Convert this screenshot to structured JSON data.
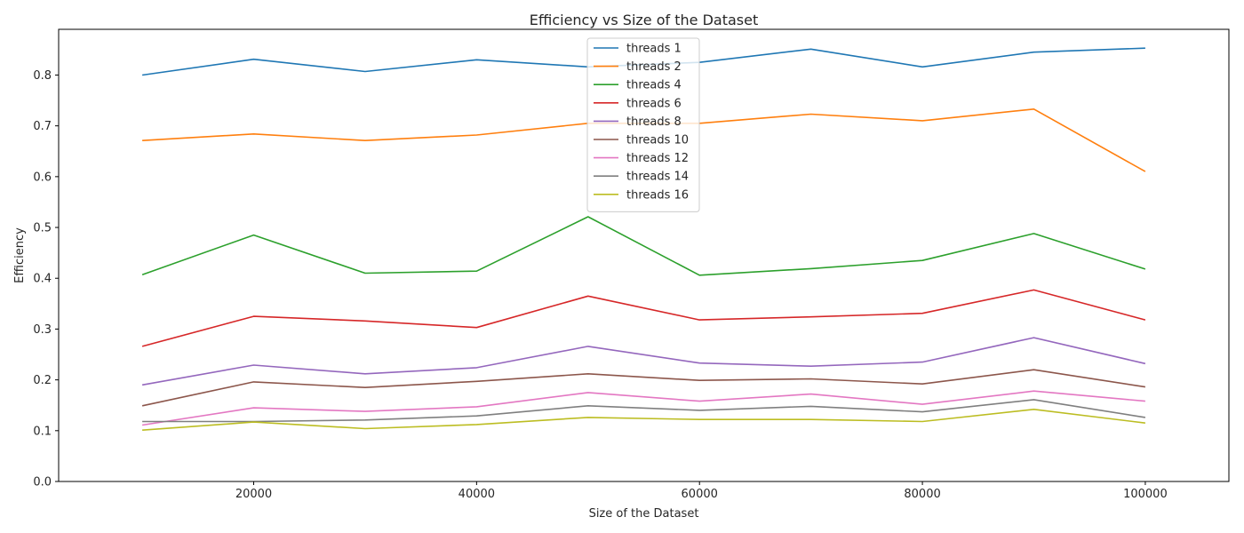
{
  "chart_data": {
    "type": "line",
    "title": "Efficiency vs Size of the Dataset",
    "xlabel": "Size of the Dataset",
    "ylabel": "Efficiency",
    "x": [
      10000,
      20000,
      30000,
      40000,
      50000,
      60000,
      70000,
      80000,
      90000,
      100000
    ],
    "xlim": [
      2500,
      107500
    ],
    "ylim": [
      0.0,
      0.89
    ],
    "xticks": [
      20000,
      40000,
      60000,
      80000,
      100000
    ],
    "yticks": [
      0.0,
      0.1,
      0.2,
      0.3,
      0.4,
      0.5,
      0.6,
      0.7,
      0.8
    ],
    "grid": false,
    "legend_position": "upper-center",
    "series": [
      {
        "name": "threads 1",
        "color": "#1f77b4",
        "values": [
          0.8,
          0.831,
          0.807,
          0.83,
          0.816,
          0.825,
          0.851,
          0.816,
          0.845,
          0.853
        ]
      },
      {
        "name": "threads 2",
        "color": "#ff7f0e",
        "values": [
          0.671,
          0.684,
          0.671,
          0.682,
          0.705,
          0.705,
          0.723,
          0.71,
          0.733,
          0.61
        ]
      },
      {
        "name": "threads 4",
        "color": "#2ca02c",
        "values": [
          0.407,
          0.485,
          0.41,
          0.414,
          0.521,
          0.406,
          0.419,
          0.435,
          0.488,
          0.418
        ]
      },
      {
        "name": "threads 6",
        "color": "#d62728",
        "values": [
          0.266,
          0.325,
          0.316,
          0.303,
          0.365,
          0.318,
          0.324,
          0.331,
          0.377,
          0.318
        ]
      },
      {
        "name": "threads 8",
        "color": "#9467bd",
        "values": [
          0.19,
          0.229,
          0.212,
          0.224,
          0.266,
          0.233,
          0.227,
          0.235,
          0.283,
          0.232
        ]
      },
      {
        "name": "threads 10",
        "color": "#8c564b",
        "values": [
          0.149,
          0.196,
          0.185,
          0.197,
          0.212,
          0.199,
          0.202,
          0.192,
          0.22,
          0.186
        ]
      },
      {
        "name": "threads 12",
        "color": "#e377c2",
        "values": [
          0.111,
          0.145,
          0.138,
          0.147,
          0.175,
          0.158,
          0.172,
          0.152,
          0.178,
          0.158
        ]
      },
      {
        "name": "threads 14",
        "color": "#7f7f7f",
        "values": [
          0.118,
          0.118,
          0.121,
          0.129,
          0.149,
          0.14,
          0.148,
          0.137,
          0.161,
          0.126
        ]
      },
      {
        "name": "threads 16",
        "color": "#bcbd22",
        "values": [
          0.101,
          0.117,
          0.104,
          0.112,
          0.126,
          0.122,
          0.122,
          0.118,
          0.142,
          0.115
        ]
      }
    ]
  }
}
